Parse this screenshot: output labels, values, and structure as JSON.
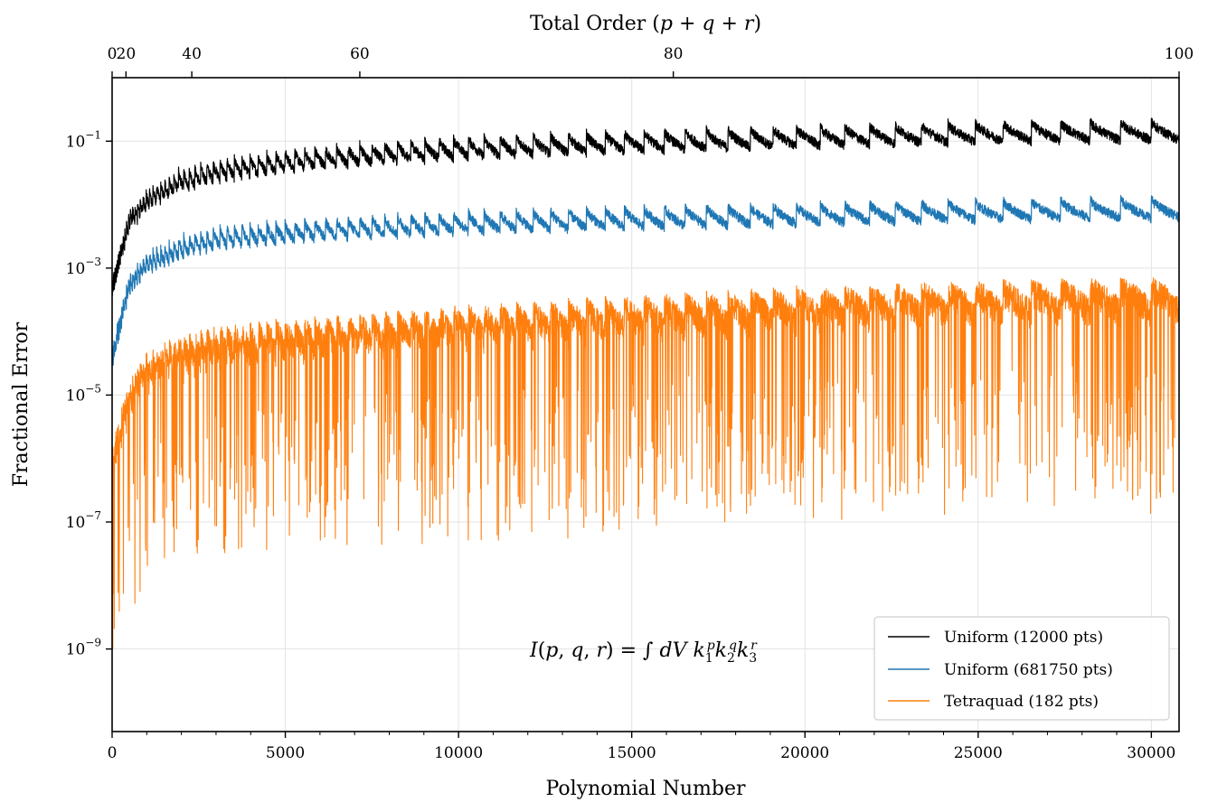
{
  "chart_data": {
    "type": "line",
    "title": "",
    "xlabel": "Polynomial Number",
    "ylabel": "Fractional Error",
    "top_xlabel": "Total Order (p + q + r)",
    "yscale": "log",
    "xlim": [
      0,
      30800
    ],
    "ylim": [
      5e-11,
      1
    ],
    "xticks": [
      0,
      5000,
      10000,
      15000,
      20000,
      25000,
      30000
    ],
    "yticks": [
      {
        "value": 0.1,
        "base": "10",
        "exp": "−1"
      },
      {
        "value": 0.001,
        "base": "10",
        "exp": "−3"
      },
      {
        "value": 1e-05,
        "base": "10",
        "exp": "−5"
      },
      {
        "value": 1e-07,
        "base": "10",
        "exp": "−7"
      },
      {
        "value": 1e-09,
        "base": "10",
        "exp": "−9"
      }
    ],
    "top_xticks": [
      {
        "label": "0",
        "x": 0
      },
      {
        "label": "20",
        "x": 400
      },
      {
        "label": "40",
        "x": 2300
      },
      {
        "label": "60",
        "x": 7150
      },
      {
        "label": "80",
        "x": 16200
      },
      {
        "label": "100",
        "x": 30800
      }
    ],
    "grid": true,
    "legend_position": "bottom-right",
    "annotation": {
      "lhs": "I(p, q, r) = ∫ dV",
      "text": "I(p, q, r) = ∫ dV k₁ᵖ k₂ᑫ k₃ʳ",
      "x": 20000,
      "y": 1e-09
    },
    "series": [
      {
        "name": "Uniform (12000 pts)",
        "color": "#000000",
        "x": [
          0,
          500,
          1000,
          2000,
          3000,
          5000,
          7500,
          10000,
          15000,
          20000,
          25000,
          30800
        ],
        "y": [
          0.0005,
          0.006,
          0.012,
          0.025,
          0.035,
          0.05,
          0.065,
          0.08,
          0.1,
          0.12,
          0.14,
          0.15
        ]
      },
      {
        "name": "Uniform (681750 pts)",
        "color": "#1f77b4",
        "x": [
          0,
          500,
          1000,
          2000,
          3000,
          5000,
          7500,
          10000,
          15000,
          20000,
          25000,
          30800
        ],
        "y": [
          4e-05,
          0.0006,
          0.0012,
          0.0022,
          0.003,
          0.0038,
          0.0046,
          0.0053,
          0.0063,
          0.0072,
          0.0082,
          0.009
        ]
      },
      {
        "name": "Tetraquad (182 pts)",
        "color": "#ff7f0e",
        "x": [
          0,
          500,
          1000,
          2000,
          3000,
          5000,
          7500,
          10000,
          15000,
          20000,
          25000,
          30800
        ],
        "y": [
          1e-06,
          1e-05,
          3e-05,
          5e-05,
          7e-05,
          9e-05,
          0.00011,
          0.00014,
          0.0002,
          0.00028,
          0.00035,
          0.0004
        ]
      }
    ]
  }
}
